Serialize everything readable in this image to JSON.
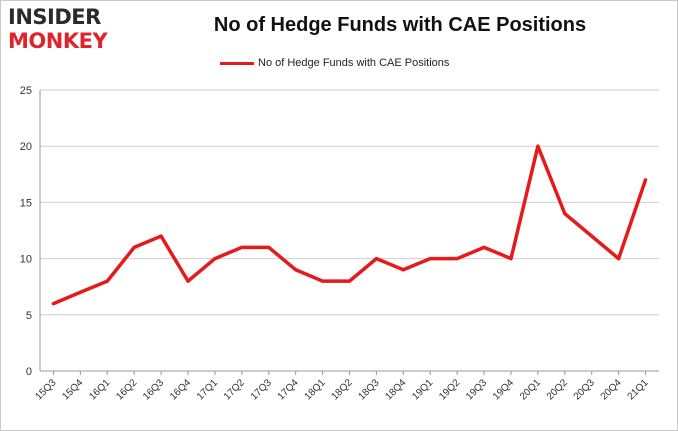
{
  "logo": {
    "line1": "INSIDER",
    "line2": "MONKEY"
  },
  "colors": {
    "series": "#e51a1a",
    "grid": "#cfcfcf",
    "axis": "#999999",
    "logo_red": "#e0242c"
  },
  "chart_data": {
    "type": "line",
    "title": "No of Hedge Funds with CAE Positions",
    "xlabel": "",
    "ylabel": "",
    "ylim": [
      0,
      25
    ],
    "yticks": [
      0,
      5,
      10,
      15,
      20,
      25
    ],
    "grid": true,
    "legend_position": "top-center",
    "categories": [
      "15Q3",
      "15Q4",
      "16Q1",
      "16Q2",
      "16Q3",
      "16Q4",
      "17Q1",
      "17Q2",
      "17Q3",
      "17Q4",
      "18Q1",
      "18Q2",
      "18Q3",
      "18Q4",
      "19Q1",
      "19Q2",
      "19Q3",
      "19Q4",
      "20Q1",
      "20Q2",
      "20Q3",
      "20Q4",
      "21Q1"
    ],
    "series": [
      {
        "name": "No of Hedge Funds with CAE Positions",
        "values": [
          6,
          7,
          8,
          11,
          12,
          8,
          10,
          11,
          11,
          9,
          8,
          8,
          10,
          9,
          10,
          10,
          11,
          10,
          20,
          14,
          12,
          10,
          17
        ]
      }
    ]
  }
}
